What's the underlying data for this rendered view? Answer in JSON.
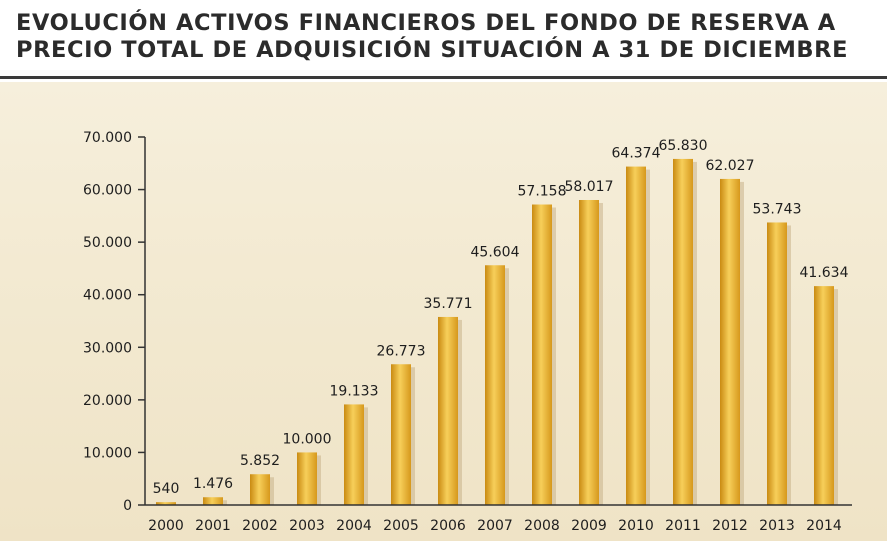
{
  "chart_data": {
    "type": "bar",
    "title_line1": "EVOLUCIÓN ACTIVOS FINANCIEROS DEL FONDO DE RESERVA A",
    "title_line2": "PRECIO TOTAL DE ADQUISICIÓN  SITUACIÓN A 31 DE DICIEMBRE",
    "xlabel": "",
    "ylabel": "",
    "categories": [
      "2000",
      "2001",
      "2002",
      "2003",
      "2004",
      "2005",
      "2006",
      "2007",
      "2008",
      "2009",
      "2010",
      "2011",
      "2012",
      "2013",
      "2014"
    ],
    "values": [
      540,
      1476,
      5852,
      10000,
      19133,
      26773,
      35771,
      45604,
      57158,
      58017,
      64374,
      65830,
      62027,
      53743,
      41634
    ],
    "value_labels": [
      "540",
      "1.476",
      "5.852",
      "10.000",
      "19.133",
      "26.773",
      "35.771",
      "45.604",
      "57.158",
      "58.017",
      "64.374",
      "65.830",
      "62.027",
      "53.743",
      "41.634"
    ],
    "yticks": [
      0,
      10000,
      20000,
      30000,
      40000,
      50000,
      60000,
      70000
    ],
    "ytick_labels": [
      "0",
      "10.000",
      "20.000",
      "30.000",
      "40.000",
      "50.000",
      "60.000",
      "70.000"
    ],
    "ylim": [
      0,
      70000
    ],
    "grid": false,
    "legend": "none",
    "colors": {
      "bar_dark": "#c98a12",
      "bar_light": "#f7cf5a",
      "shadow": "#c9b38a",
      "axis": "#333333",
      "title": "#2b2b2b"
    }
  }
}
